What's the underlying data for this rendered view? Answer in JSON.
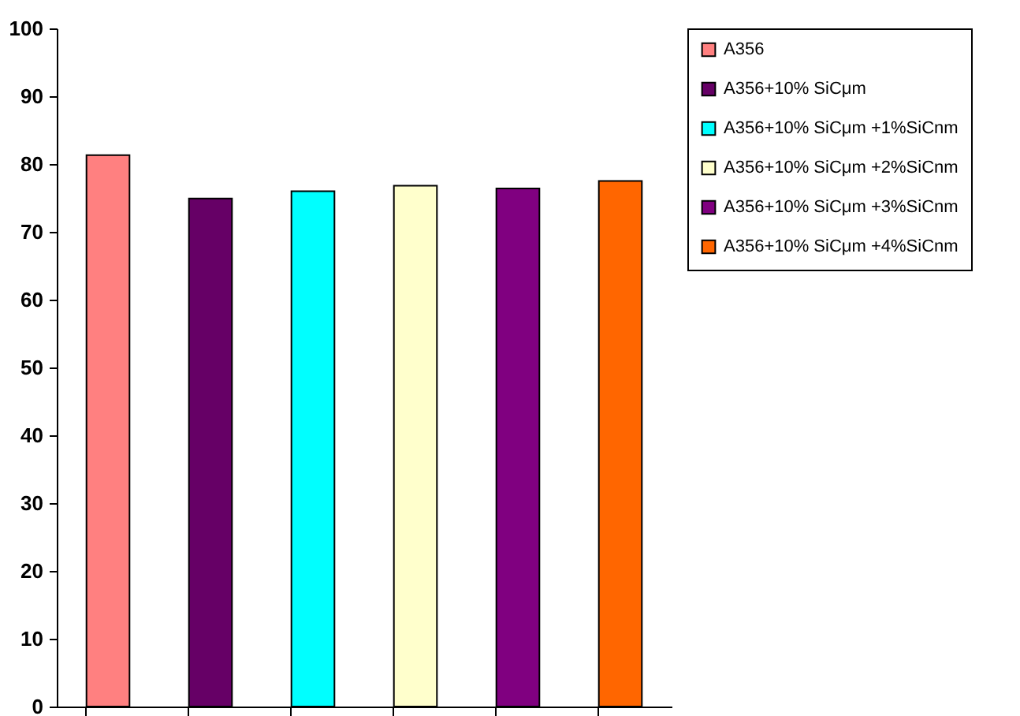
{
  "chart_data": {
    "type": "bar",
    "categories": [
      null,
      null,
      null,
      null,
      null,
      null
    ],
    "series": [
      {
        "name": "A356",
        "color": "#ff8080",
        "values": [
          81.3,
          null,
          null,
          null,
          null,
          null
        ]
      },
      {
        "name": "A356+10% SiCμm",
        "color": "#660066",
        "values": [
          null,
          74.9,
          null,
          null,
          null,
          null
        ]
      },
      {
        "name": "A356+10% SiCμm +1%SiCnm",
        "color": "#00ffff",
        "values": [
          null,
          null,
          76.0,
          null,
          null,
          null
        ]
      },
      {
        "name": "A356+10% SiCμm +2%SiCnm",
        "color": "#ffffcc",
        "values": [
          null,
          null,
          null,
          76.8,
          null,
          null
        ]
      },
      {
        "name": "A356+10% SiCμm +3%SiCnm",
        "color": "#800080",
        "values": [
          null,
          null,
          null,
          null,
          76.4,
          null
        ]
      },
      {
        "name": "A356+10% SiCμm +4%SiCnm",
        "color": "#ff6600",
        "values": [
          null,
          null,
          null,
          null,
          null,
          77.5
        ]
      }
    ],
    "ylim": [
      0,
      100
    ],
    "yticks": [
      0,
      10,
      20,
      30,
      40,
      50,
      60,
      70,
      80,
      90,
      100
    ],
    "grid": false,
    "legend": "right"
  }
}
